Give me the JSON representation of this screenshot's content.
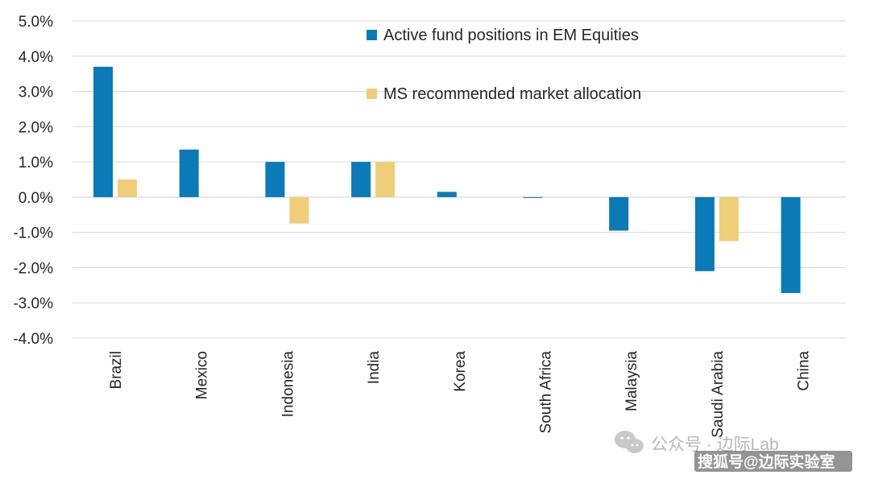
{
  "chart_data": {
    "type": "bar",
    "categories": [
      "Brazil",
      "Mexico",
      "Indonesia",
      "India",
      "Korea",
      "South Africa",
      "Malaysia",
      "Saudi Arabia",
      "China"
    ],
    "series": [
      {
        "name": "Active fund positions in EM Equities",
        "color": "#0a7ab8",
        "values": [
          3.7,
          1.35,
          1.0,
          1.0,
          0.15,
          -0.02,
          -0.95,
          -2.1,
          -2.72
        ]
      },
      {
        "name": "MS recommended market allocation",
        "color": "#f0cd79",
        "values": [
          0.5,
          0.0,
          -0.75,
          1.0,
          0.0,
          0.0,
          0.0,
          -1.25,
          0.0
        ]
      }
    ],
    "ylim": [
      -4.0,
      5.0
    ],
    "yticks": [
      5.0,
      4.0,
      3.0,
      2.0,
      1.0,
      0.0,
      -1.0,
      -2.0,
      -3.0,
      -4.0
    ],
    "ytick_labels": [
      "5.0%",
      "4.0%",
      "3.0%",
      "2.0%",
      "1.0%",
      "0.0%",
      "-1.0%",
      "-2.0%",
      "-3.0%",
      "-4.0%"
    ],
    "title": "",
    "xlabel": "",
    "ylabel": "",
    "grid": true,
    "legend_position": "top-center"
  },
  "watermark": {
    "line1": "公众号 · 边际Lab",
    "line2": "搜狐号@边际实验室",
    "icon": "wechat-icon"
  }
}
